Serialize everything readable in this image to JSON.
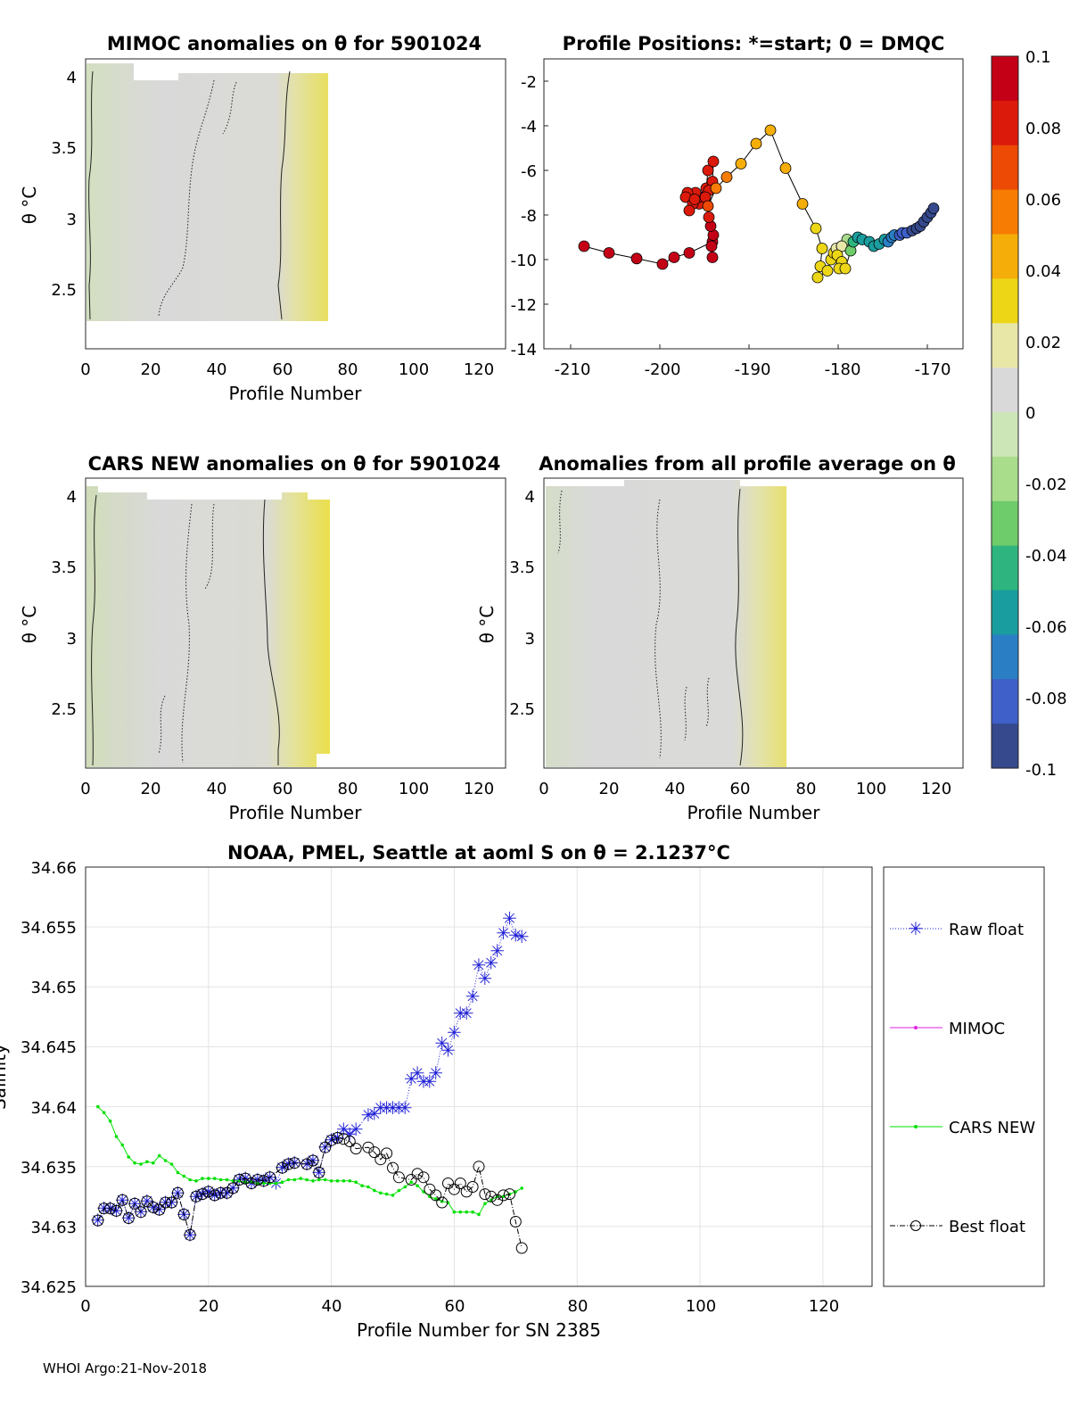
{
  "footer": "WHOI Argo:21-Nov-2018",
  "colorbar": {
    "ticks": [
      "0.1",
      "0.08",
      "0.06",
      "0.04",
      "0.02",
      "0",
      "-0.02",
      "-0.04",
      "-0.06",
      "-0.08",
      "-0.1"
    ],
    "colors": [
      "#c40016",
      "#dc1a0c",
      "#ec4a05",
      "#f67c04",
      "#f5ae09",
      "#ecd616",
      "#e8e7a8",
      "#d9d9d9",
      "#cde6b8",
      "#a9dd8c",
      "#6fcc6a",
      "#2eb57f",
      "#1a9d9e",
      "#2a7fc4",
      "#3f5fc9",
      "#35498c"
    ]
  },
  "panels": {
    "mimoc": {
      "title": "MIMOC anomalies on θ  for 5901024",
      "xlabel": "Profile Number",
      "ylabel": "θ °C",
      "xticks": [
        "0",
        "20",
        "40",
        "60",
        "80",
        "100",
        "120"
      ],
      "yticks": [
        "4",
        "3.5",
        "3",
        "2.5"
      ]
    },
    "positions": {
      "title": "Profile Positions: *=start; 0 = DMQC",
      "xticks": [
        "-210",
        "-200",
        "-190",
        "-180",
        "-170"
      ],
      "yticks": [
        "-2",
        "-4",
        "-6",
        "-8",
        "-10",
        "-12",
        "-14"
      ]
    },
    "cars": {
      "title": "CARS NEW anomalies on θ for 5901024",
      "xlabel": "Profile Number",
      "ylabel": "θ °C",
      "xticks": [
        "0",
        "20",
        "40",
        "60",
        "80",
        "100",
        "120"
      ],
      "yticks": [
        "4",
        "3.5",
        "3",
        "2.5"
      ]
    },
    "allavg": {
      "title": "Anomalies from all profile average on θ",
      "xlabel": "Profile Number",
      "ylabel": "θ °C",
      "xticks": [
        "0",
        "20",
        "40",
        "60",
        "80",
        "100",
        "120"
      ],
      "yticks": [
        "4",
        "3.5",
        "3",
        "2.5"
      ]
    },
    "salinity": {
      "title": "NOAA, PMEL, Seattle at aoml S on θ = 2.1237°C",
      "xlabel": "Profile Number for SN 2385",
      "ylabel": "Salinity",
      "xticks": [
        "0",
        "20",
        "40",
        "60",
        "80",
        "100",
        "120"
      ],
      "yticks": [
        "34.66",
        "34.655",
        "34.65",
        "34.645",
        "34.64",
        "34.635",
        "34.63",
        "34.625"
      ]
    }
  },
  "legend": {
    "raw": "Raw float",
    "mimoc": "MIMOC",
    "cars": "CARS NEW",
    "best": "Best float"
  },
  "chart_data": [
    {
      "type": "line",
      "title": "NOAA, PMEL, Seattle at aoml S on θ = 2.1237°C",
      "xlabel": "Profile Number for SN 2385",
      "ylabel": "Salinity",
      "xlim": [
        0,
        128
      ],
      "ylim": [
        34.625,
        34.66
      ],
      "series": [
        {
          "name": "Raw float",
          "color": "#1f1fd6",
          "x": [
            2,
            3,
            4,
            5,
            6,
            7,
            8,
            9,
            10,
            11,
            12,
            13,
            14,
            15,
            16,
            17,
            18,
            19,
            20,
            21,
            22,
            23,
            24,
            25,
            26,
            27,
            28,
            29,
            30,
            31,
            32,
            33,
            34,
            36,
            37,
            38,
            39,
            40,
            41,
            42,
            43,
            44,
            46,
            47,
            48,
            49,
            50,
            51,
            52,
            53,
            54,
            55,
            56,
            57,
            58,
            59,
            60,
            61,
            62,
            63,
            64,
            65,
            66,
            67,
            68,
            69,
            70,
            71
          ],
          "y": [
            34.6305,
            34.6315,
            34.6315,
            34.6313,
            34.6322,
            34.6307,
            34.6319,
            34.6312,
            34.6321,
            34.6316,
            34.6314,
            34.632,
            34.632,
            34.6328,
            34.631,
            34.6293,
            34.6325,
            34.6327,
            34.6329,
            34.6326,
            34.6328,
            34.6328,
            34.6332,
            34.6339,
            34.634,
            34.6336,
            34.6339,
            34.6338,
            34.6341,
            34.6336,
            34.6349,
            34.6352,
            34.6353,
            34.6352,
            34.6355,
            34.6345,
            34.6366,
            34.6372,
            34.6374,
            34.6381,
            34.6377,
            34.6381,
            34.6393,
            34.6394,
            34.6399,
            34.6399,
            34.6399,
            34.6399,
            34.6399,
            34.6423,
            34.6428,
            34.6421,
            34.6421,
            34.6428,
            34.6453,
            34.6447,
            34.6462,
            34.6478,
            34.6478,
            34.6492,
            34.6518,
            34.6507,
            34.652,
            34.653,
            34.6545,
            34.6557,
            34.6543,
            34.6542
          ]
        },
        {
          "name": "MIMOC",
          "color": "#e020e0",
          "x": [],
          "y": []
        },
        {
          "name": "CARS NEW",
          "color": "#00e000",
          "x": [
            2,
            3,
            4,
            5,
            6,
            7,
            8,
            9,
            10,
            11,
            12,
            13,
            14,
            15,
            16,
            17,
            18,
            19,
            20,
            21,
            22,
            23,
            24,
            25,
            26,
            27,
            28,
            29,
            30,
            31,
            32,
            33,
            34,
            35,
            36,
            37,
            38,
            39,
            40,
            41,
            42,
            43,
            44,
            45,
            46,
            47,
            48,
            49,
            50,
            51,
            52,
            53,
            54,
            55,
            56,
            57,
            58,
            59,
            60,
            61,
            62,
            63,
            64,
            65,
            66,
            67,
            68,
            69,
            70,
            71
          ],
          "y": [
            34.64,
            34.6395,
            34.6388,
            34.6375,
            34.6368,
            34.6358,
            34.6353,
            34.6352,
            34.6354,
            34.6353,
            34.6359,
            34.6355,
            34.6352,
            34.6345,
            34.6342,
            34.6339,
            34.6338,
            34.634,
            34.634,
            34.634,
            34.6339,
            34.6339,
            34.6338,
            34.6338,
            34.6337,
            34.6337,
            34.6336,
            34.6336,
            34.6336,
            34.6336,
            34.6337,
            34.6339,
            34.6339,
            34.634,
            34.6339,
            34.6338,
            34.6339,
            34.6339,
            34.6338,
            34.6338,
            34.6338,
            34.6338,
            34.6337,
            34.6334,
            34.6333,
            34.633,
            34.6328,
            34.6327,
            34.6326,
            34.633,
            34.6333,
            34.6337,
            34.6334,
            34.6329,
            34.6325,
            34.6323,
            34.6321,
            34.632,
            34.6312,
            34.6312,
            34.6312,
            34.6312,
            34.631,
            34.6319,
            34.6322,
            34.6325,
            34.6325,
            34.6327,
            34.6329,
            34.6332
          ]
        },
        {
          "name": "Best float",
          "color": "#000000",
          "x": [
            2,
            3,
            4,
            5,
            6,
            7,
            8,
            9,
            10,
            11,
            12,
            13,
            14,
            15,
            16,
            17,
            18,
            19,
            20,
            21,
            22,
            23,
            24,
            25,
            26,
            27,
            28,
            29,
            30,
            32,
            33,
            34,
            36,
            37,
            38,
            39,
            40,
            41,
            42,
            43,
            44,
            46,
            47,
            48,
            49,
            50,
            51,
            53,
            54,
            55,
            56,
            57,
            58,
            59,
            60,
            61,
            62,
            63,
            64,
            65,
            66,
            67,
            68,
            69,
            70,
            71
          ],
          "y": [
            34.6305,
            34.6315,
            34.6315,
            34.6313,
            34.6322,
            34.6307,
            34.6319,
            34.6312,
            34.6321,
            34.6316,
            34.6314,
            34.632,
            34.632,
            34.6328,
            34.631,
            34.6293,
            34.6325,
            34.6327,
            34.6329,
            34.6326,
            34.6328,
            34.6328,
            34.6332,
            34.6339,
            34.634,
            34.6336,
            34.6339,
            34.6338,
            34.6341,
            34.6349,
            34.6352,
            34.6353,
            34.6352,
            34.6355,
            34.6345,
            34.6366,
            34.6372,
            34.6374,
            34.6373,
            34.6371,
            34.6365,
            34.6366,
            34.6362,
            34.6356,
            34.6361,
            34.6349,
            34.6341,
            34.6339,
            34.6344,
            34.6341,
            34.6331,
            34.6326,
            34.632,
            34.6336,
            34.6331,
            34.6336,
            34.6329,
            34.6333,
            34.635,
            34.6327,
            34.6325,
            34.6322,
            34.6326,
            34.6327,
            34.6304,
            34.6282
          ]
        }
      ]
    },
    {
      "type": "scatter",
      "title": "Profile Positions: *=start; 0 = DMQC",
      "xlim": [
        -213,
        -166
      ],
      "ylim": [
        -14,
        -1
      ],
      "colorbar_range": [
        -0.1,
        0.1
      ],
      "series": [
        {
          "name": "Profile track",
          "x": [
            -208.5,
            -205.7,
            -202.6,
            -199.7,
            -198.4,
            -196.7,
            -194.1,
            -194.1,
            -194.2,
            -194.0,
            -194.3,
            -194.5,
            -194.8,
            -195.6,
            -195.6,
            -196.0,
            -196.9,
            -197.1,
            -196.3,
            -196.7,
            -196.1,
            -194.8,
            -194.6,
            -194.0,
            -194.1,
            -194.5,
            -194.9,
            -194.6,
            -193.7,
            -192.5,
            -190.9,
            -189.2,
            -187.6,
            -185.9,
            -184.0,
            -182.5,
            -181.8,
            -182.0,
            -182.3,
            -181.2,
            -180.8,
            -180.5,
            -180.2,
            -179.6,
            -179.0,
            -179.6,
            -180.1,
            -179.6,
            -179.9,
            -179.2,
            -178.6,
            -178.3,
            -177.8,
            -177.3,
            -176.5,
            -176.0,
            -175.4,
            -174.8,
            -174.4,
            -174.0,
            -173.7,
            -173.1,
            -172.8,
            -172.3,
            -171.7,
            -171.2,
            -170.8,
            -170.4,
            -170.0,
            -169.6,
            -169.3
          ],
          "y": [
            -9.4,
            -9.7,
            -9.95,
            -10.2,
            -9.9,
            -9.7,
            -9.2,
            -9.9,
            -9.4,
            -8.9,
            -8.5,
            -8.1,
            -7.5,
            -7.5,
            -7.2,
            -7.0,
            -7.0,
            -7.2,
            -7.5,
            -7.8,
            -7.3,
            -6.8,
            -6.0,
            -5.6,
            -6.5,
            -6.9,
            -7.2,
            -7.6,
            -6.8,
            -6.3,
            -5.7,
            -4.8,
            -4.2,
            -5.9,
            -7.5,
            -8.6,
            -9.5,
            -10.3,
            -10.8,
            -10.5,
            -10.0,
            -9.7,
            -9.5,
            -9.4,
            -9.1,
            -9.4,
            -9.8,
            -10.1,
            -10.4,
            -10.4,
            -9.6,
            -9.2,
            -9.0,
            -9.1,
            -9.2,
            -9.4,
            -9.3,
            -9.1,
            -9.2,
            -9.0,
            -8.9,
            -8.9,
            -8.8,
            -8.8,
            -8.7,
            -8.6,
            -8.5,
            -8.3,
            -8.1,
            -7.9,
            -7.7
          ],
          "value": [
            0.1,
            0.1,
            0.1,
            0.1,
            0.1,
            0.09,
            0.09,
            0.09,
            0.09,
            0.09,
            0.09,
            0.08,
            0.08,
            0.08,
            0.08,
            0.08,
            0.08,
            0.08,
            0.08,
            0.08,
            0.08,
            0.08,
            0.08,
            0.08,
            0.08,
            0.08,
            0.08,
            0.07,
            0.06,
            0.055,
            0.05,
            0.05,
            0.045,
            0.045,
            0.04,
            0.035,
            0.035,
            0.03,
            0.03,
            0.03,
            0.03,
            0.03,
            0.02,
            -0.01,
            -0.02,
            0.02,
            0.03,
            0.03,
            0.03,
            0.03,
            -0.03,
            -0.04,
            -0.05,
            -0.05,
            -0.055,
            -0.06,
            -0.06,
            -0.06,
            -0.065,
            -0.07,
            -0.075,
            -0.08,
            -0.085,
            -0.085,
            -0.09,
            -0.09,
            -0.09,
            -0.09,
            -0.095,
            -0.1,
            -0.1
          ]
        }
      ]
    }
  ]
}
